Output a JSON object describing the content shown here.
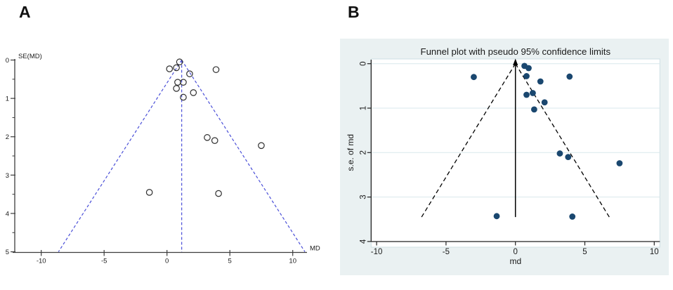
{
  "figure": {
    "panels": [
      {
        "label": "A"
      },
      {
        "label": "B"
      }
    ]
  },
  "chart_data": [
    {
      "type": "scatter",
      "subtype": "funnel-plot",
      "panel": "A",
      "source_style": "revman-funnel",
      "title": "",
      "xlabel": "MD",
      "ylabel": "SE(MD)",
      "xticks": [
        -10,
        -5,
        0,
        5,
        10
      ],
      "yticks": [
        0,
        1,
        2,
        3,
        4,
        5
      ],
      "ylim": [
        0,
        5
      ],
      "y_axis_inverted": true,
      "legend": "none",
      "grid": false,
      "center_estimate": 1.17,
      "pseudo_ci": {
        "multiplier": 1.96,
        "se_at_base": 5,
        "x_at_base": [
          -8.63,
          10.97
        ]
      },
      "points": [
        [
          1.0,
          0.05
        ],
        [
          0.2,
          0.23
        ],
        [
          0.75,
          0.2
        ],
        [
          1.8,
          0.36
        ],
        [
          3.9,
          0.25
        ],
        [
          0.85,
          0.58
        ],
        [
          1.3,
          0.58
        ],
        [
          0.75,
          0.74
        ],
        [
          2.1,
          0.85
        ],
        [
          1.3,
          0.97
        ],
        [
          3.2,
          2.02
        ],
        [
          3.8,
          2.1
        ],
        [
          7.5,
          2.23
        ],
        [
          -1.4,
          3.45
        ],
        [
          4.1,
          3.48
        ]
      ],
      "marker": "open-circle",
      "colors": {
        "funnel_line": "#4a4fd8",
        "axis": "#3c3c3c",
        "marker_stroke": "#2e2e2e",
        "text": "#1a1a1a",
        "plot_bg": "#ffffff"
      }
    },
    {
      "type": "scatter",
      "subtype": "funnel-plot",
      "panel": "B",
      "source_style": "stata-metafunnel",
      "title": "Funnel plot with pseudo 95% confidence limits",
      "xlabel": "md",
      "ylabel": "s.e. of md",
      "xticks": [
        -10,
        -5,
        0,
        5,
        10
      ],
      "yticks": [
        0,
        1,
        2,
        3,
        4
      ],
      "ylim": [
        0,
        4
      ],
      "y_axis_inverted": true,
      "legend": "none",
      "grid": true,
      "center_estimate": 0,
      "pseudo_ci": {
        "multiplier": 1.96,
        "se_at_base": 3.45,
        "x_at_base": [
          -6.76,
          6.76
        ]
      },
      "points": [
        [
          -3.0,
          0.3
        ],
        [
          0.65,
          0.05
        ],
        [
          0.95,
          0.1
        ],
        [
          0.8,
          0.28
        ],
        [
          1.8,
          0.4
        ],
        [
          3.9,
          0.29
        ],
        [
          0.8,
          0.7
        ],
        [
          1.25,
          0.66
        ],
        [
          2.1,
          0.87
        ],
        [
          1.35,
          1.03
        ],
        [
          3.2,
          2.02
        ],
        [
          3.8,
          2.1
        ],
        [
          7.5,
          2.24
        ],
        [
          -1.35,
          3.43
        ],
        [
          4.1,
          3.44
        ]
      ],
      "marker": "filled-circle",
      "colors": {
        "marker_fill": "#1a476f",
        "background": "#eaf1f2",
        "plot_bg": "#ffffff",
        "plot_border": "#cfe0e4",
        "grid": "#d9e8ec",
        "line": "#000000",
        "text": "#1a1a1a"
      }
    }
  ]
}
